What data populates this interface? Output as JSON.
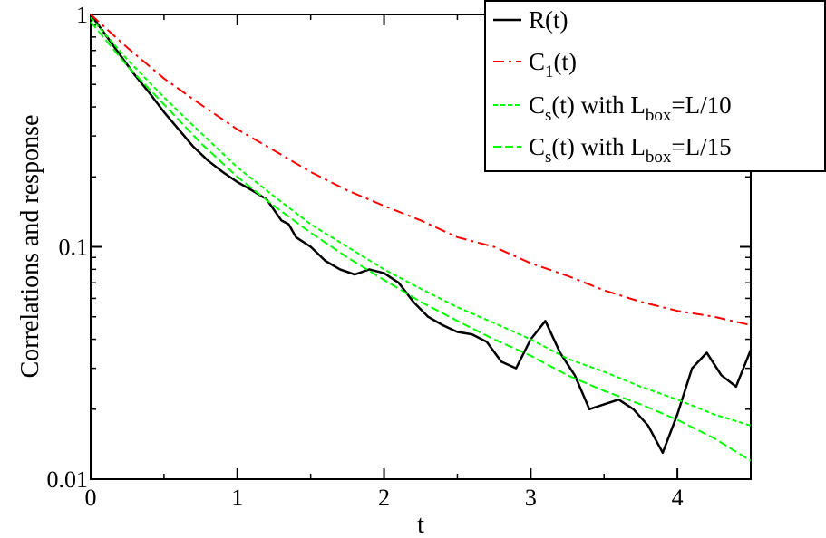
{
  "chart_data": {
    "type": "line",
    "xlabel": "t",
    "ylabel": "Correlations and response",
    "xlim": [
      0,
      4.5
    ],
    "ylim": [
      0.01,
      1
    ],
    "yscale": "log",
    "grid": false,
    "legend_position": "top-right",
    "x_ticks": [
      {
        "value": 0,
        "label": "0"
      },
      {
        "value": 1,
        "label": "1"
      },
      {
        "value": 2,
        "label": "2"
      },
      {
        "value": 3,
        "label": "3"
      },
      {
        "value": 4,
        "label": "4"
      }
    ],
    "y_ticks": [
      {
        "value": 0.01,
        "label": "0.01"
      },
      {
        "value": 0.1,
        "label": "0.1"
      },
      {
        "value": 1,
        "label": "1"
      }
    ],
    "series": [
      {
        "key": "R",
        "name": "R(t)",
        "legend_main": "R(t)",
        "legend_sub": "",
        "legend_tail": "",
        "legend_sub2": "",
        "legend_tail2": "",
        "color": "#000000",
        "dash": "",
        "x": [
          0,
          0.1,
          0.2,
          0.3,
          0.4,
          0.5,
          0.6,
          0.7,
          0.8,
          0.9,
          1.0,
          1.1,
          1.2,
          1.3,
          1.35,
          1.4,
          1.5,
          1.6,
          1.7,
          1.8,
          1.9,
          2.0,
          2.1,
          2.2,
          2.3,
          2.4,
          2.5,
          2.6,
          2.7,
          2.8,
          2.9,
          3.0,
          3.1,
          3.2,
          3.3,
          3.4,
          3.5,
          3.6,
          3.7,
          3.8,
          3.9,
          4.0,
          4.1,
          4.2,
          4.3,
          4.4,
          4.5
        ],
        "y": [
          1.0,
          0.82,
          0.67,
          0.55,
          0.46,
          0.38,
          0.32,
          0.27,
          0.235,
          0.21,
          0.19,
          0.175,
          0.16,
          0.13,
          0.125,
          0.11,
          0.1,
          0.087,
          0.08,
          0.076,
          0.08,
          0.077,
          0.07,
          0.058,
          0.05,
          0.046,
          0.043,
          0.042,
          0.039,
          0.032,
          0.03,
          0.04,
          0.048,
          0.035,
          0.028,
          0.02,
          0.021,
          0.022,
          0.02,
          0.017,
          0.013,
          0.019,
          0.03,
          0.035,
          0.028,
          0.025,
          0.036
        ]
      },
      {
        "key": "C1",
        "name": "C1(t)",
        "legend_main": "C",
        "legend_sub": "1",
        "legend_tail": "(t)",
        "legend_sub2": "",
        "legend_tail2": "",
        "color": "#ff0000",
        "dash": "12,5,3,5",
        "x": [
          0,
          0.25,
          0.5,
          0.75,
          1.0,
          1.25,
          1.5,
          1.75,
          2.0,
          2.25,
          2.5,
          2.75,
          3.0,
          3.25,
          3.5,
          3.75,
          4.0,
          4.25,
          4.5
        ],
        "y": [
          1.0,
          0.72,
          0.53,
          0.41,
          0.32,
          0.26,
          0.21,
          0.175,
          0.15,
          0.13,
          0.11,
          0.1,
          0.085,
          0.075,
          0.065,
          0.058,
          0.053,
          0.05,
          0.046
        ]
      },
      {
        "key": "Cs10",
        "name": "Cs(t) with Lbox=L/10",
        "legend_main": "C",
        "legend_sub": "s",
        "legend_tail": "(t) with L",
        "legend_sub2": "box",
        "legend_tail2": "=L/10",
        "color": "#00ff00",
        "dash": "5,3",
        "x": [
          0,
          0.25,
          0.5,
          0.75,
          1.0,
          1.25,
          1.5,
          1.75,
          2.0,
          2.25,
          2.5,
          2.75,
          3.0,
          3.25,
          3.5,
          3.75,
          4.0,
          4.25,
          4.5
        ],
        "y": [
          0.97,
          0.64,
          0.44,
          0.31,
          0.22,
          0.165,
          0.125,
          0.1,
          0.08,
          0.066,
          0.055,
          0.047,
          0.04,
          0.033,
          0.029,
          0.025,
          0.022,
          0.019,
          0.017
        ]
      },
      {
        "key": "Cs15",
        "name": "Cs(t) with Lbox=L/15",
        "legend_main": "C",
        "legend_sub": "s",
        "legend_tail": "(t) with L",
        "legend_sub2": "box",
        "legend_tail2": "=L/15",
        "color": "#00ff00",
        "dash": "9,4",
        "x": [
          0,
          0.25,
          0.5,
          0.75,
          1.0,
          1.25,
          1.5,
          1.75,
          2.0,
          2.25,
          2.5,
          2.75,
          3.0,
          3.25,
          3.5,
          3.75,
          4.0,
          4.25,
          4.5
        ],
        "y": [
          0.93,
          0.6,
          0.41,
          0.28,
          0.2,
          0.15,
          0.115,
          0.09,
          0.072,
          0.058,
          0.048,
          0.04,
          0.034,
          0.028,
          0.024,
          0.021,
          0.018,
          0.015,
          0.012
        ]
      }
    ]
  }
}
